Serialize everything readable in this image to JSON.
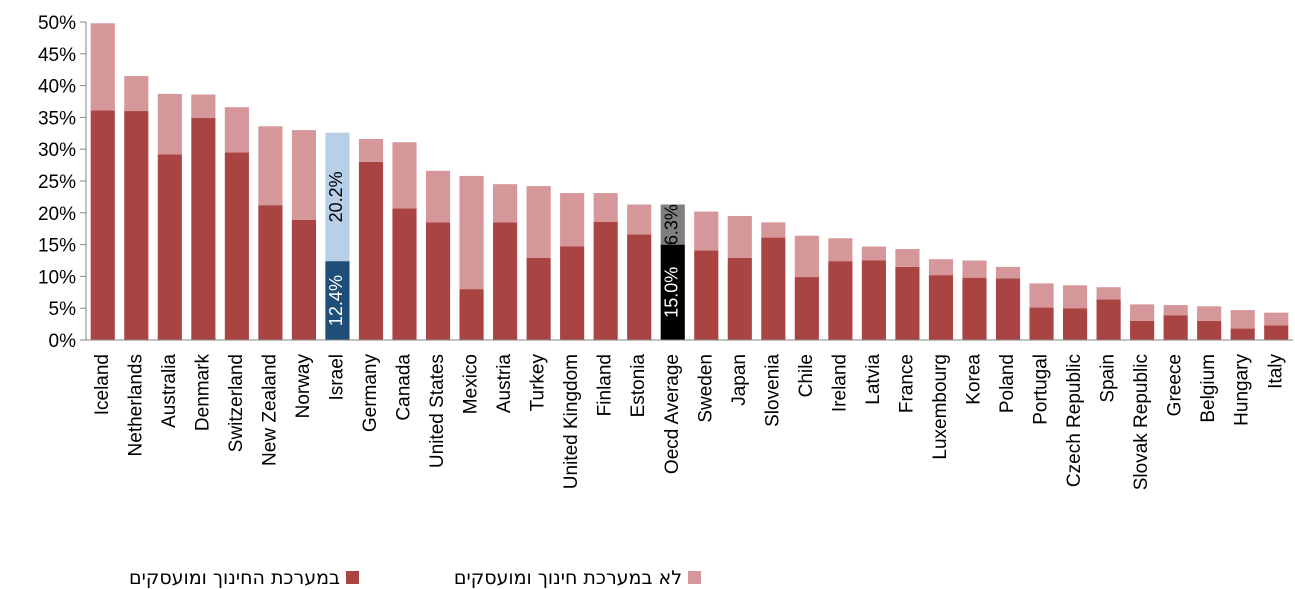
{
  "chart_data": {
    "type": "bar",
    "stacked": true,
    "categories": [
      "Iceland",
      "Netherlands",
      "Australia",
      "Denmark",
      "Switzerland",
      "New Zealand",
      "Norway",
      "Israel",
      "Germany",
      "Canada",
      "United States",
      "Mexico",
      "Austria",
      "Turkey",
      "United Kingdom",
      "Finland",
      "Estonia",
      "Oecd Average",
      "Sweden",
      "Japan",
      "Slovenia",
      "Chile",
      "Ireland",
      "Latvia",
      "France",
      "Luxembourg",
      "Korea",
      "Poland",
      "Portugal",
      "Czech Republic",
      "Spain",
      "Slovak Republic",
      "Greece",
      "Belgium",
      "Hungary",
      "Italy"
    ],
    "series": [
      {
        "name": "במערכת החינוך ומועסקים",
        "color": "#A94442",
        "values": [
          36.1,
          36.0,
          29.2,
          34.9,
          29.5,
          21.2,
          18.9,
          12.4,
          28.0,
          20.7,
          18.5,
          8.0,
          18.5,
          12.9,
          14.7,
          18.6,
          16.6,
          15.0,
          14.1,
          12.9,
          16.1,
          9.9,
          12.4,
          12.5,
          11.5,
          10.2,
          9.8,
          9.7,
          5.1,
          5.0,
          6.4,
          3.0,
          3.9,
          3.0,
          1.8,
          2.3
        ]
      },
      {
        "name": "לא במערכת חינוך ומועסקים",
        "color": "#D6979A",
        "values": [
          13.7,
          5.5,
          9.5,
          3.7,
          7.1,
          12.4,
          14.1,
          20.2,
          3.6,
          10.4,
          8.1,
          17.8,
          6.0,
          11.3,
          8.4,
          4.5,
          4.7,
          6.3,
          6.1,
          6.6,
          2.4,
          6.5,
          3.6,
          2.2,
          2.8,
          2.5,
          2.7,
          1.8,
          3.8,
          3.6,
          1.9,
          2.6,
          1.6,
          2.3,
          2.9,
          2.0
        ]
      }
    ],
    "highlights": {
      "Israel": {
        "colors": [
          "#1F4E79",
          "#B7CFE8"
        ],
        "labels": [
          "12.4%",
          "20.2%"
        ],
        "label_colors": [
          "#FFFFFF",
          "#000000"
        ]
      },
      "Oecd Average": {
        "colors": [
          "#000000",
          "#7F7F7F"
        ],
        "labels": [
          "15.0%",
          "6.3%"
        ],
        "label_colors": [
          "#FFFFFF",
          "#000000"
        ]
      }
    },
    "y_ticks": [
      "0%",
      "5%",
      "10%",
      "15%",
      "20%",
      "25%",
      "30%",
      "35%",
      "40%",
      "45%",
      "50%"
    ],
    "ylim": [
      0,
      50
    ],
    "grid": false,
    "legend_position": "bottom",
    "xlabel": "",
    "ylabel": "",
    "title": ""
  }
}
